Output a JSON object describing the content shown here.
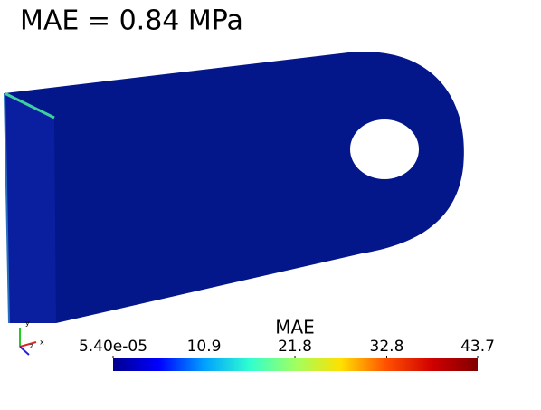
{
  "title": "MAE = 0.84 MPa",
  "colorbar": {
    "title": "MAE",
    "range": [
      5.4e-05,
      43.7
    ],
    "ticks": [
      {
        "value": 5.4e-05,
        "label": "5.40e-05"
      },
      10.9,
      21.8,
      32.8,
      43.7
    ],
    "colors": [
      "#00008f",
      "#0000ff",
      "#00a0ff",
      "#30ffd0",
      "#a0ff60",
      "#ffe000",
      "#ff5000",
      "#d00000",
      "#800000"
    ]
  },
  "axes_triad": {
    "labels": [
      "y",
      "z",
      "x"
    ]
  }
}
